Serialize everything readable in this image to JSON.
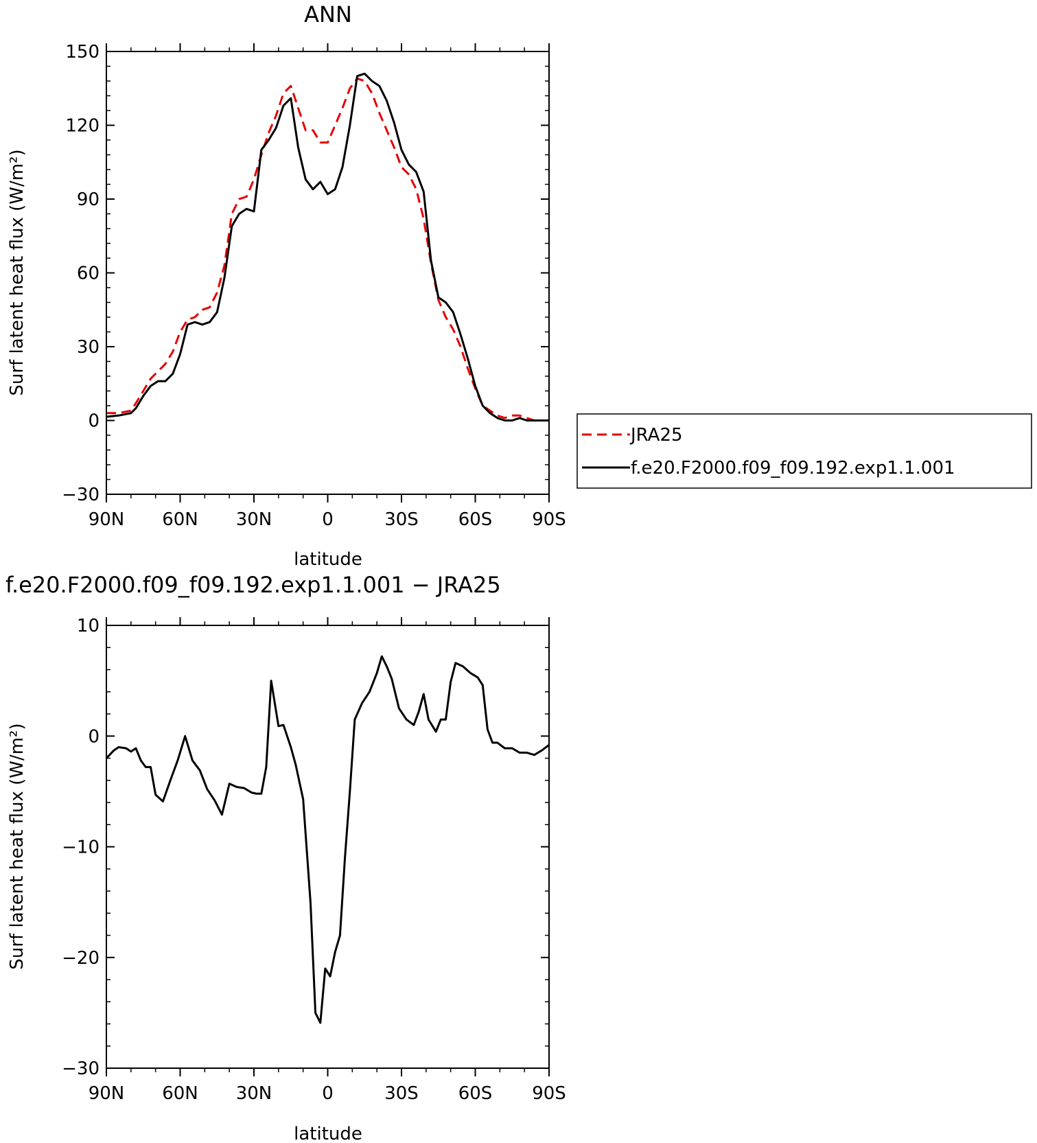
{
  "chart_data": [
    {
      "type": "line",
      "title": "ANN",
      "xlabel": "latitude",
      "ylabel": "Surf latent heat flux (W/m²)",
      "xlim": [
        90,
        -90
      ],
      "ylim": [
        -30,
        150
      ],
      "yticks": [
        -30,
        0,
        30,
        60,
        90,
        120,
        150
      ],
      "xticks": [
        90,
        60,
        30,
        0,
        -30,
        -60,
        -90
      ],
      "xtick_labels": [
        "90N",
        "60N",
        "30N",
        "0",
        "30S",
        "60S",
        "90S"
      ],
      "legend_position": "right",
      "series": [
        {
          "name": "JRA25",
          "color": "#e60000",
          "style": "dashed",
          "x": [
            90,
            85,
            80,
            78,
            75,
            72,
            69,
            66,
            63,
            60,
            57,
            54,
            51,
            48,
            45,
            42,
            39,
            36,
            33,
            30,
            27,
            24,
            21,
            18,
            15,
            12,
            9,
            6,
            3,
            0,
            -3,
            -6,
            -9,
            -12,
            -15,
            -18,
            -21,
            -24,
            -27,
            -30,
            -33,
            -36,
            -39,
            -42,
            -45,
            -48,
            -51,
            -54,
            -57,
            -60,
            -63,
            -66,
            -69,
            -72,
            -75,
            -78,
            -81,
            -84,
            -87,
            -90
          ],
          "y": [
            3,
            3,
            4,
            7,
            12,
            17,
            20,
            23,
            28,
            36,
            41,
            42,
            45,
            46,
            52,
            63,
            84,
            90,
            91,
            98,
            108,
            117,
            124,
            133,
            136,
            127,
            118,
            118,
            113,
            113,
            120,
            127,
            135,
            139,
            138,
            133,
            125,
            118,
            111,
            103,
            100,
            94,
            82,
            64,
            49,
            42,
            37,
            30,
            21,
            13,
            6,
            4,
            2,
            1,
            2,
            2,
            1,
            0,
            0,
            0
          ]
        },
        {
          "name": "f.e20.F2000.f09_f09.192.exp1.1.001",
          "color": "#000000",
          "style": "solid",
          "x": [
            90,
            85,
            80,
            78,
            75,
            72,
            69,
            66,
            63,
            60,
            57,
            54,
            51,
            48,
            45,
            42,
            39,
            36,
            33,
            30,
            27,
            24,
            21,
            18,
            15,
            12,
            9,
            6,
            3,
            0,
            -3,
            -6,
            -9,
            -12,
            -15,
            -18,
            -21,
            -24,
            -27,
            -30,
            -33,
            -36,
            -39,
            -42,
            -45,
            -48,
            -51,
            -54,
            -57,
            -60,
            -63,
            -66,
            -69,
            -72,
            -75,
            -78,
            -81,
            -84,
            -87,
            -90
          ],
          "y": [
            1.5,
            2,
            3,
            5,
            10,
            14,
            16,
            16,
            19,
            27,
            39,
            40,
            39,
            40,
            44,
            58,
            79,
            84,
            86,
            85,
            110,
            114,
            119,
            128,
            131,
            111,
            98,
            94,
            97,
            92,
            94,
            103,
            120,
            140,
            141,
            138,
            136,
            130,
            121,
            110,
            104,
            101,
            93,
            65,
            50,
            48,
            44,
            35,
            25,
            14,
            6,
            3,
            1,
            0,
            0,
            1,
            0,
            0,
            0,
            0
          ]
        }
      ]
    },
    {
      "type": "line",
      "title": "f.e20.F2000.f09_f09.192.exp1.1.001 − JRA25",
      "xlabel": "latitude",
      "ylabel": "Surf latent heat flux (W/m²)",
      "xlim": [
        90,
        -90
      ],
      "ylim": [
        -30,
        10
      ],
      "yticks": [
        -30,
        -20,
        -10,
        0,
        10
      ],
      "xticks": [
        90,
        60,
        30,
        0,
        -30,
        -60,
        -90
      ],
      "xtick_labels": [
        "90N",
        "60N",
        "30N",
        "0",
        "30S",
        "60S",
        "90S"
      ],
      "series": [
        {
          "name": "",
          "color": "#000000",
          "style": "solid",
          "x": [
            90,
            87,
            85,
            82,
            80,
            78,
            76,
            74,
            72,
            70,
            67,
            64,
            61,
            58,
            55,
            52,
            49,
            46,
            43,
            40,
            37,
            34,
            31,
            29,
            27,
            25,
            23,
            20,
            18,
            15,
            13,
            10,
            7,
            5,
            3,
            1,
            -1,
            -3,
            -5,
            -7,
            -9,
            -11,
            -14,
            -17,
            -20,
            -22,
            -24,
            -26,
            -29,
            -32,
            -35,
            -37,
            -39,
            -41,
            -44,
            -46,
            -48,
            -50,
            -52,
            -55,
            -58,
            -61,
            -63,
            -65,
            -67,
            -69,
            -72,
            -75,
            -78,
            -81,
            -84,
            -87,
            -90
          ],
          "y": [
            -2,
            -1.3,
            -1,
            -1.1,
            -1.4,
            -1.1,
            -2.2,
            -2.8,
            -2.8,
            -5.3,
            -5.9,
            -4,
            -2.2,
            0,
            -2.2,
            -3.1,
            -4.8,
            -5.8,
            -7.1,
            -4.3,
            -4.6,
            -4.7,
            -5.1,
            -5.2,
            -5.2,
            -2.8,
            5,
            0.9,
            1,
            -1,
            -2.6,
            -5.7,
            -15,
            -25,
            -25.9,
            -21,
            -21.7,
            -19.5,
            -18,
            -11,
            -5,
            1.5,
            3,
            4,
            5.7,
            7.2,
            6.3,
            5.2,
            2.5,
            1.5,
            1,
            2.2,
            3.8,
            1.5,
            0.4,
            1.5,
            1.5,
            4.9,
            6.6,
            6.3,
            5.7,
            5.3,
            4.6,
            0.6,
            -0.6,
            -0.6,
            -1.1,
            -1.1,
            -1.5,
            -1.5,
            -1.7,
            -1.3,
            -0.8
          ]
        }
      ]
    }
  ]
}
